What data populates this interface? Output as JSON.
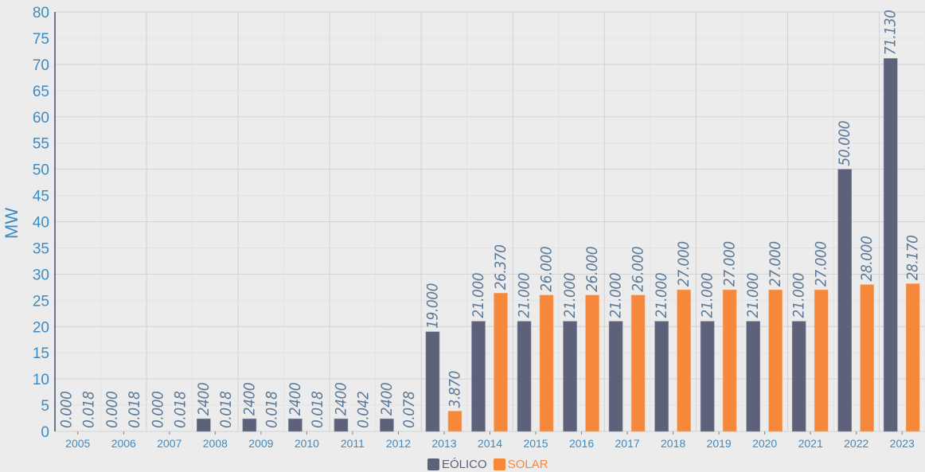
{
  "chart_data": {
    "type": "bar",
    "title": "",
    "xlabel": "",
    "ylabel": "MW",
    "ylim": [
      0,
      80
    ],
    "yticks": [
      0,
      5,
      10,
      15,
      20,
      25,
      30,
      35,
      40,
      45,
      50,
      55,
      60,
      65,
      70,
      75,
      80
    ],
    "grid": true,
    "legend_position": "bottom",
    "categories": [
      "2005",
      "2006",
      "2007",
      "2008",
      "2009",
      "2010",
      "2011",
      "2012",
      "2013",
      "2014",
      "2015",
      "2016",
      "2017",
      "2018",
      "2019",
      "2020",
      "2021",
      "2022",
      "2023"
    ],
    "series": [
      {
        "name": "EÓLICO",
        "color": "#5d6179",
        "values": [
          0,
          0,
          0,
          2.4,
          2.4,
          2.4,
          2.4,
          2.4,
          19,
          21,
          21,
          21,
          21,
          21,
          21,
          21,
          21,
          50,
          71.13
        ],
        "labels": [
          "0.000",
          "0.000",
          "0.000",
          "2400",
          "2400",
          "2400",
          "2400",
          "2400",
          "19.000",
          "21.000",
          "21.000",
          "21.000",
          "21.000",
          "21.000",
          "21.000",
          "21.000",
          "21.000",
          "50.000",
          "71.130"
        ]
      },
      {
        "name": "SOLAR",
        "color": "#f5883b",
        "values": [
          0.018,
          0.018,
          0.018,
          0.018,
          0.018,
          0.018,
          0.042,
          0.078,
          3.87,
          26.37,
          26,
          26,
          26,
          27,
          27,
          27,
          27,
          28,
          28.17
        ],
        "labels": [
          "0.018",
          "0.018",
          "0.018",
          "0.018",
          "0.018",
          "0.018",
          "0.042",
          "0.078",
          "3.870",
          "26.370",
          "26.000",
          "26.000",
          "26.000",
          "27.000",
          "27.000",
          "27.000",
          "27.000",
          "28.000",
          "28.170"
        ]
      }
    ]
  },
  "colors": {
    "axis_text": "#3b8bc4",
    "label_text": "#5b7a99",
    "grid": "#d4d4d4",
    "background": "#ececec"
  }
}
